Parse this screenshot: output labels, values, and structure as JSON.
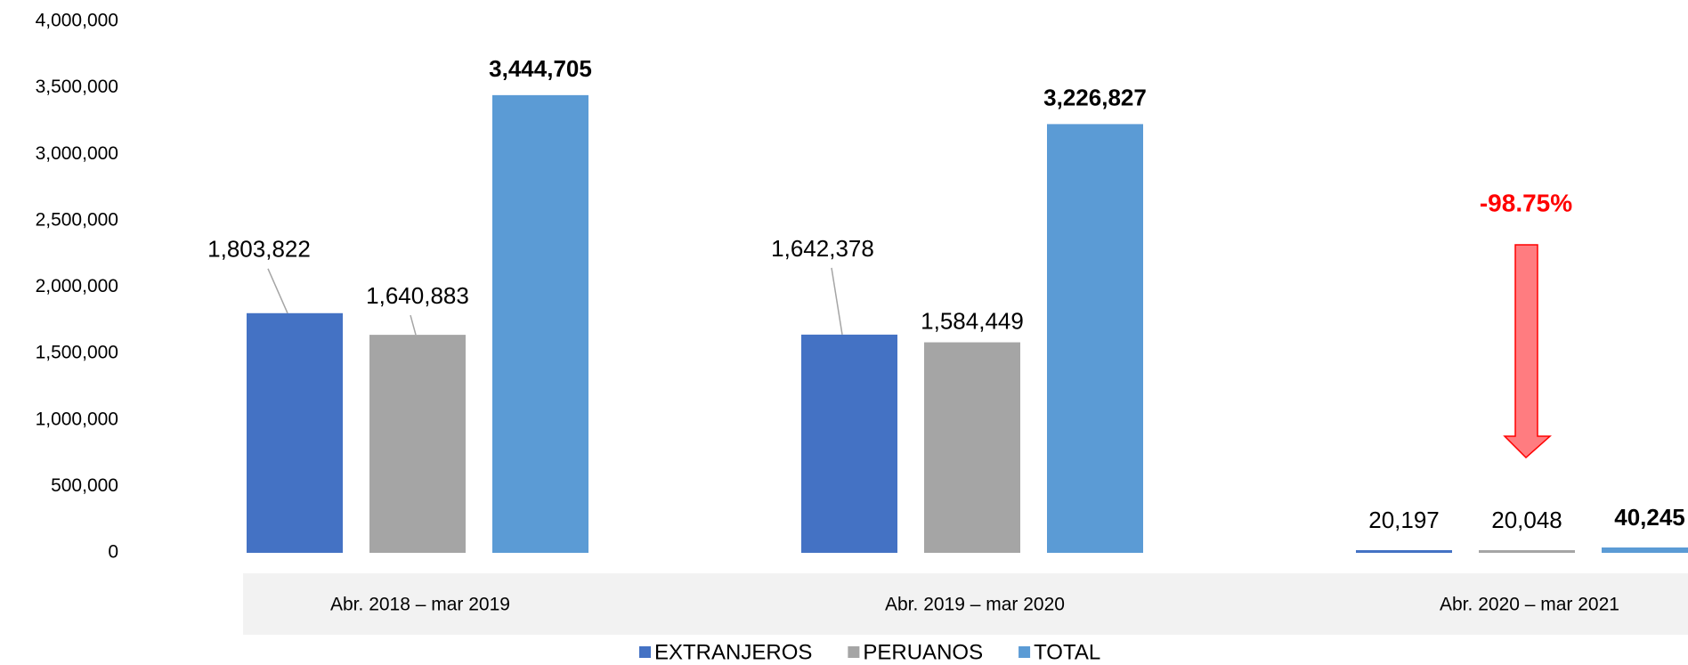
{
  "chart_data": {
    "type": "bar",
    "categories": [
      "Abr. 2018 – mar 2019",
      "Abr. 2019 – mar 2020",
      "Abr. 2020 – mar 2021"
    ],
    "series": [
      {
        "name": "EXTRANJEROS",
        "color": "#4472c4",
        "values": [
          1803822,
          1642378,
          20197
        ],
        "value_labels": [
          "1,803,822",
          "1,642,378",
          "20,197"
        ]
      },
      {
        "name": "PERUANOS",
        "color": "#a5a5a5",
        "values": [
          1640883,
          1584449,
          20048
        ],
        "value_labels": [
          "1,640,883",
          "1,584,449",
          "20,048"
        ]
      },
      {
        "name": "TOTAL",
        "color": "#5b9bd5",
        "values": [
          3444705,
          3226827,
          40245
        ],
        "value_labels": [
          "3,444,705",
          "3,226,827",
          "40,245"
        ]
      }
    ],
    "ylim": [
      0,
      4000000
    ],
    "yticks": [
      {
        "value": 0,
        "label": "0"
      },
      {
        "value": 500000,
        "label": "500,000"
      },
      {
        "value": 1000000,
        "label": "1,000,000"
      },
      {
        "value": 1500000,
        "label": "1,500,000"
      },
      {
        "value": 2000000,
        "label": "2,000,000"
      },
      {
        "value": 2500000,
        "label": "2,500,000"
      },
      {
        "value": 3000000,
        "label": "3,000,000"
      },
      {
        "value": 3500000,
        "label": "3,500,000"
      },
      {
        "value": 4000000,
        "label": "4,000,000"
      }
    ],
    "grid": false,
    "legend": "bottom",
    "annotations": [
      {
        "text": "-98.75%",
        "color": "#ff0000"
      }
    ]
  }
}
